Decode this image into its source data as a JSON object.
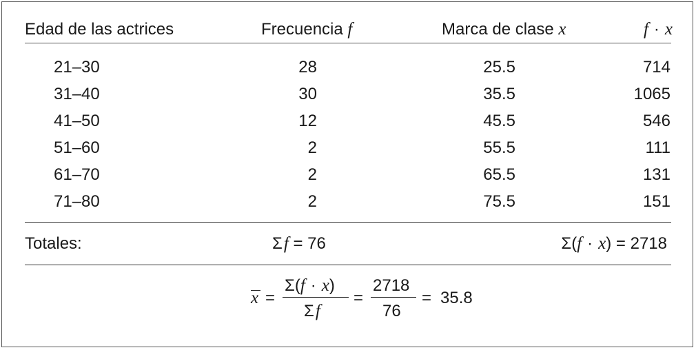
{
  "header": {
    "col_age": "Edad de las actrices",
    "col_freq_text": "Frecuencia",
    "col_freq_var": "f",
    "col_mark_text": "Marca de clase",
    "col_mark_var": "x",
    "col_fx_f": "f",
    "col_fx_dot": "·",
    "col_fx_x": "x"
  },
  "rows": [
    {
      "age": "21–30",
      "freq": "28",
      "mark": "25.5",
      "fx": "714"
    },
    {
      "age": "31–40",
      "freq": "30",
      "mark": "35.5",
      "fx": "1065"
    },
    {
      "age": "41–50",
      "freq": "12",
      "mark": "45.5",
      "fx": "546"
    },
    {
      "age": "51–60",
      "freq": "2",
      "mark": "55.5",
      "fx": "111"
    },
    {
      "age": "61–70",
      "freq": "2",
      "mark": "65.5",
      "fx": "131"
    },
    {
      "age": "71–80",
      "freq": "2",
      "mark": "75.5",
      "fx": "151"
    }
  ],
  "totals": {
    "label": "Totales:",
    "sum_f_sigma": "Σ",
    "sum_f_var": "f",
    "sum_f_eq": "= 76",
    "sum_fx_sigma": "Σ(",
    "sum_fx_f": "f",
    "sum_fx_dot": "·",
    "sum_fx_x": "x",
    "sum_fx_close": ")",
    "sum_fx_eq": "= 2718"
  },
  "formula": {
    "mean_var": "x",
    "eq1": "=",
    "num1_sigma": "Σ(",
    "num1_f": "f",
    "num1_dot": "·",
    "num1_x": "x",
    "num1_close": ")",
    "den1_sigma": "Σ",
    "den1_f": "f",
    "eq2": "=",
    "num2": "2718",
    "den2": "76",
    "eq3": "=",
    "result": "35.8"
  }
}
